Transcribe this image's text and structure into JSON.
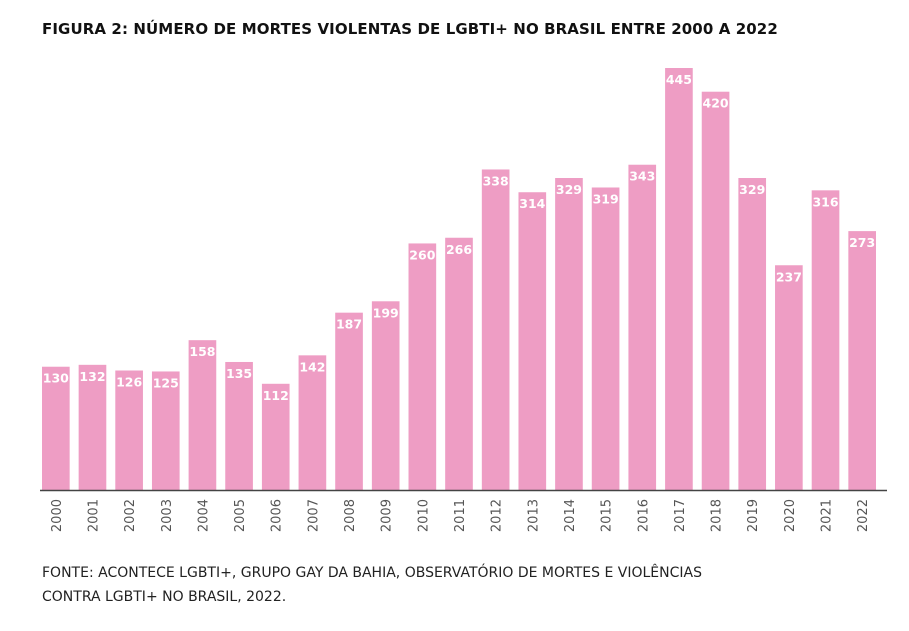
{
  "chart_data": {
    "type": "bar",
    "title": "FIGURA 2: NÚMERO DE MORTES VIOLENTAS DE LGBTI+ NO BRASIL ENTRE 2000 A 2022",
    "xlabel": "",
    "ylabel": "",
    "categories": [
      "2000",
      "2001",
      "2002",
      "2003",
      "2004",
      "2005",
      "2006",
      "2007",
      "2008",
      "2009",
      "2010",
      "2011",
      "2012",
      "2013",
      "2014",
      "2015",
      "2016",
      "2017",
      "2018",
      "2019",
      "2020",
      "2021",
      "2022"
    ],
    "values": [
      130,
      132,
      126,
      125,
      158,
      135,
      112,
      142,
      187,
      199,
      260,
      266,
      338,
      314,
      329,
      319,
      343,
      445,
      420,
      329,
      237,
      316,
      273
    ],
    "ylim": [
      0,
      445
    ],
    "grid": false,
    "legend": "none",
    "bar_color": "#ee9dc4",
    "label_color": "#ffffff",
    "axis_color": "#444444",
    "tick_color": "#555555"
  },
  "source_note": {
    "line1": "FONTE: ACONTECE LGBTI+, GRUPO GAY DA BAHIA, OBSERVATÓRIO DE MORTES E VIOLÊNCIAS",
    "line2": "CONTRA LGBTI+ NO BRASIL, 2022."
  }
}
